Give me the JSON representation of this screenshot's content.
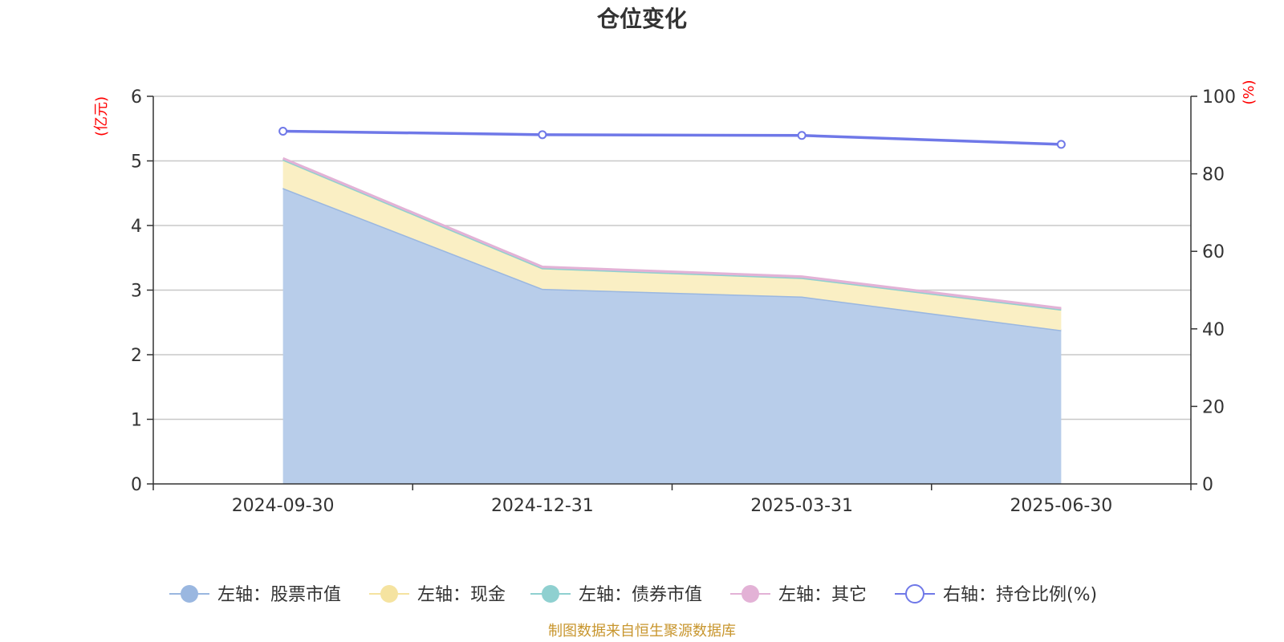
{
  "chart_data": {
    "type": "area",
    "title": "仓位变化",
    "categories": [
      "2024-09-30",
      "2024-12-31",
      "2025-03-31",
      "2025-06-30"
    ],
    "left_axis": {
      "unit_label": "(亿元)",
      "ylim": [
        0,
        6
      ],
      "ticks": [
        "0",
        "1",
        "2",
        "3",
        "4",
        "5",
        "6"
      ]
    },
    "right_axis": {
      "unit_label": "(%)",
      "ylim": [
        0,
        100
      ],
      "ticks": [
        "0",
        "20",
        "40",
        "60",
        "80",
        "100"
      ]
    },
    "series": [
      {
        "name": "左轴：股票市值",
        "axis": "left",
        "stack": true,
        "values": [
          4.58,
          3.02,
          2.9,
          2.38
        ],
        "color": "#9ab7e0",
        "fill": "#b8cdea"
      },
      {
        "name": "左轴：现金",
        "axis": "left",
        "stack": true,
        "values": [
          0.44,
          0.32,
          0.29,
          0.32
        ],
        "color": "#f5e3a0",
        "fill": "#faefc4"
      },
      {
        "name": "左轴：债券市值",
        "axis": "left",
        "stack": true,
        "values": [
          0,
          0,
          0,
          0
        ],
        "color": "#8fd0d0",
        "fill": "#8fd0d0"
      },
      {
        "name": "左轴：其它",
        "axis": "left",
        "stack": true,
        "values": [
          0.02,
          0.02,
          0.02,
          0.02
        ],
        "color": "#e3b2d6",
        "fill": "#e3b2d6"
      },
      {
        "name": "右轴：持仓比例(%)",
        "axis": "right",
        "stack": false,
        "values": [
          91.0,
          90.1,
          89.9,
          87.6
        ],
        "color": "#6f78e8"
      }
    ],
    "grid": true,
    "legend_position": "bottom",
    "source_note": "制图数据来自恒生聚源数据库"
  }
}
